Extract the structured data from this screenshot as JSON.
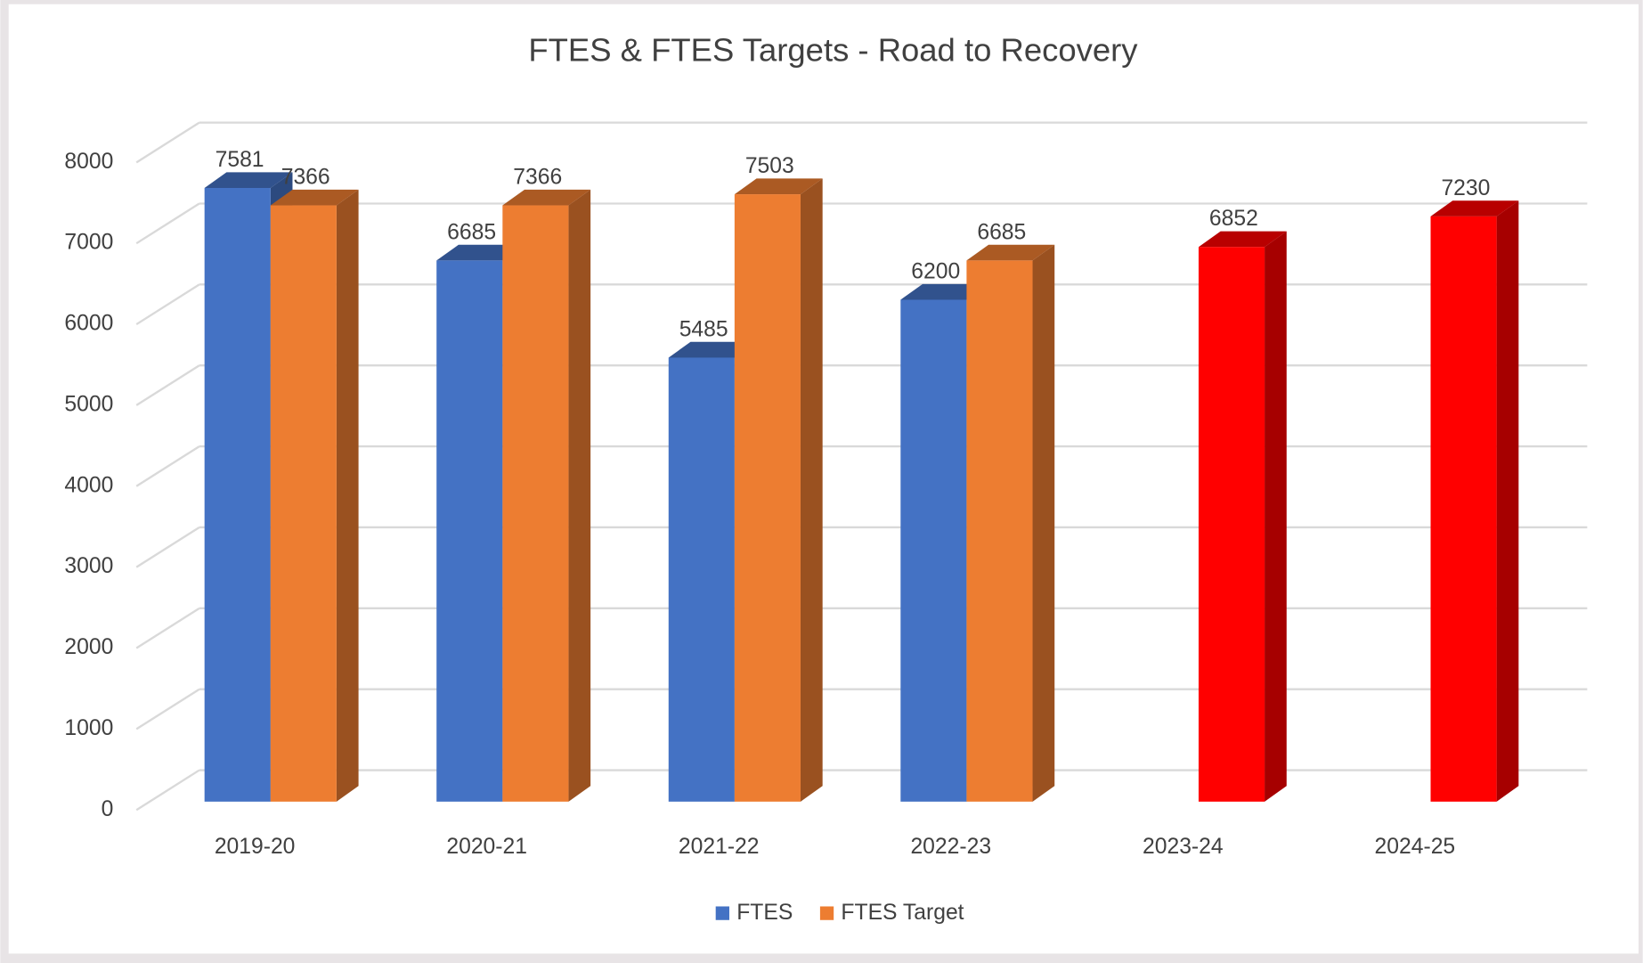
{
  "chart_data": {
    "type": "bar3d",
    "title": "FTES & FTES Targets - Road to Recovery",
    "categories": [
      "2019-20",
      "2020-21",
      "2021-22",
      "2022-23",
      "2023-24",
      "2024-25"
    ],
    "series": [
      {
        "name": "FTES",
        "color": "#4472c4",
        "values": [
          7581,
          6685,
          5485,
          6200,
          null,
          null
        ]
      },
      {
        "name": "FTES Target",
        "color": "#ed7d31",
        "colors": [
          "#ed7d31",
          "#ed7d31",
          "#ed7d31",
          "#ed7d31",
          "#ff0000",
          "#ff0000"
        ],
        "values": [
          7366,
          7366,
          7503,
          6685,
          6852,
          7230
        ]
      }
    ],
    "ylim": [
      0,
      8000
    ],
    "yticks": [
      0,
      1000,
      2000,
      3000,
      4000,
      5000,
      6000,
      7000,
      8000
    ],
    "grid": true,
    "legend": "bottom"
  }
}
